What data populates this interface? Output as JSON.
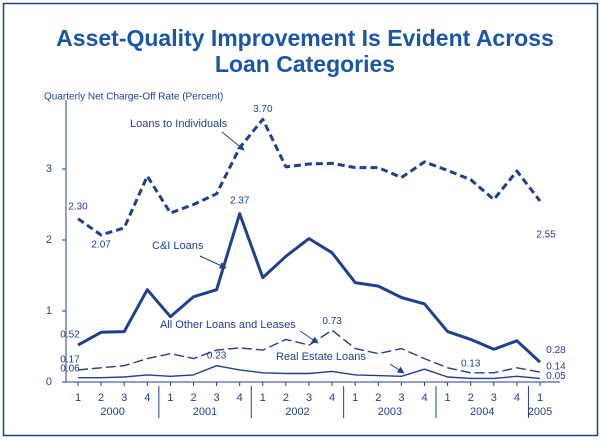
{
  "chart_data": {
    "type": "line",
    "title": [
      "Asset-Quality Improvement Is Evident Across",
      "Loan Categories"
    ],
    "y_label": "Quarterly Net Charge-Off Rate (Percent)",
    "categories": [
      "1",
      "2",
      "3",
      "4",
      "1",
      "2",
      "3",
      "4",
      "1",
      "2",
      "3",
      "4",
      "1",
      "2",
      "3",
      "4",
      "1",
      "2",
      "3",
      "4",
      "1"
    ],
    "years": [
      "2000",
      "2001",
      "2002",
      "2003",
      "2004",
      "2005"
    ],
    "ylim": [
      0,
      4
    ],
    "yticks": [
      0,
      1,
      2,
      3
    ],
    "series": [
      {
        "name": "Loans to Individuals",
        "color": "#1f3f8f",
        "linestyle": "dashed",
        "linewidth": "thick",
        "values": [
          2.3,
          2.07,
          2.17,
          2.9,
          2.38,
          2.5,
          2.65,
          3.3,
          3.7,
          3.03,
          3.07,
          3.08,
          3.02,
          3.02,
          2.88,
          3.1,
          2.98,
          2.85,
          2.57,
          2.97,
          2.55
        ],
        "value_labels": [
          "2.30",
          "2.07",
          null,
          null,
          null,
          null,
          null,
          null,
          "3.70",
          null,
          null,
          null,
          null,
          null,
          null,
          null,
          null,
          null,
          null,
          null,
          "2.55"
        ]
      },
      {
        "name": "C&I Loans",
        "color": "#1f3f8f",
        "linestyle": "solid",
        "linewidth": "thick",
        "values": [
          0.52,
          0.7,
          0.71,
          1.3,
          0.92,
          1.2,
          1.3,
          2.37,
          1.47,
          1.77,
          2.02,
          1.82,
          1.4,
          1.35,
          1.19,
          1.1,
          0.71,
          0.6,
          0.46,
          0.58,
          0.28
        ],
        "value_labels": [
          "0.52",
          null,
          null,
          null,
          null,
          null,
          null,
          "2.37",
          null,
          null,
          null,
          null,
          null,
          null,
          null,
          null,
          null,
          null,
          null,
          null,
          "0.28"
        ]
      },
      {
        "name": "All Other Loans and Leases",
        "color": "#1f3f8f",
        "linestyle": "dashed",
        "linewidth": "thin",
        "values": [
          0.17,
          0.2,
          0.23,
          0.33,
          0.4,
          0.33,
          0.45,
          0.48,
          0.45,
          0.6,
          0.52,
          0.73,
          0.47,
          0.4,
          0.47,
          0.33,
          0.2,
          0.13,
          0.13,
          0.2,
          0.14
        ],
        "value_labels": [
          "0.17",
          null,
          null,
          null,
          null,
          null,
          null,
          null,
          null,
          null,
          null,
          "0.73",
          null,
          null,
          null,
          null,
          null,
          "0.13",
          null,
          null,
          "0.14"
        ]
      },
      {
        "name": "Real Estate Loans",
        "color": "#1f3f8f",
        "linestyle": "solid",
        "linewidth": "thin",
        "values": [
          0.06,
          0.06,
          0.07,
          0.1,
          0.08,
          0.1,
          0.23,
          0.17,
          0.13,
          0.12,
          0.12,
          0.15,
          0.1,
          0.09,
          0.08,
          0.18,
          0.07,
          0.05,
          0.05,
          0.08,
          0.05
        ],
        "value_labels": [
          "0.06",
          null,
          null,
          null,
          null,
          null,
          "0.23",
          null,
          null,
          null,
          null,
          null,
          null,
          null,
          null,
          null,
          null,
          null,
          null,
          null,
          "0.05"
        ]
      }
    ]
  }
}
